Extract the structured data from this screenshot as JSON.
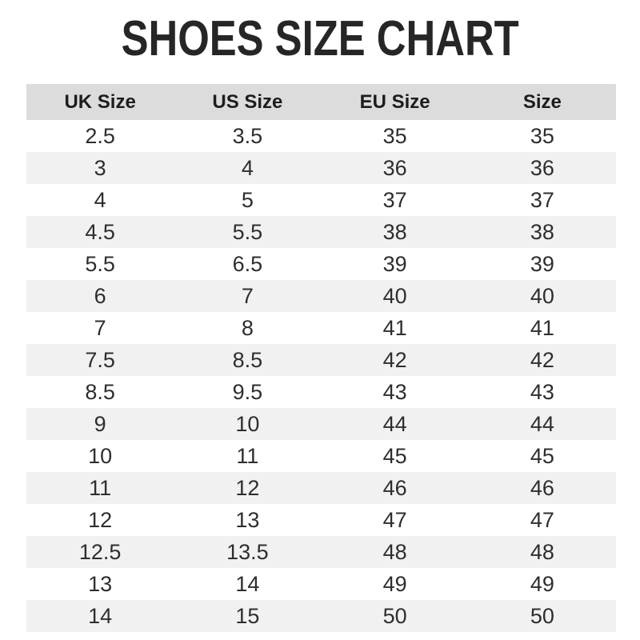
{
  "chart_data": {
    "type": "table",
    "title": "SHOES SIZE CHART",
    "columns": [
      "UK Size",
      "US Size",
      "EU Size",
      "Size"
    ],
    "rows": [
      [
        "2.5",
        "3.5",
        "35",
        "35"
      ],
      [
        "3",
        "4",
        "36",
        "36"
      ],
      [
        "4",
        "5",
        "37",
        "37"
      ],
      [
        "4.5",
        "5.5",
        "38",
        "38"
      ],
      [
        "5.5",
        "6.5",
        "39",
        "39"
      ],
      [
        "6",
        "7",
        "40",
        "40"
      ],
      [
        "7",
        "8",
        "41",
        "41"
      ],
      [
        "7.5",
        "8.5",
        "42",
        "42"
      ],
      [
        "8.5",
        "9.5",
        "43",
        "43"
      ],
      [
        "9",
        "10",
        "44",
        "44"
      ],
      [
        "10",
        "11",
        "45",
        "45"
      ],
      [
        "11",
        "12",
        "46",
        "46"
      ],
      [
        "12",
        "13",
        "47",
        "47"
      ],
      [
        "12.5",
        "13.5",
        "48",
        "48"
      ],
      [
        "13",
        "14",
        "49",
        "49"
      ],
      [
        "14",
        "15",
        "50",
        "50"
      ]
    ],
    "layout": {
      "header_row": true,
      "zebra_striping": true,
      "grid": "none"
    }
  },
  "colors": {
    "title_text": "#262626",
    "header_bg": "#dcdcdc",
    "header_text": "#1d1d1d",
    "row_alt_bg": "#f1f1f1",
    "row_bg": "#ffffff",
    "cell_text": "#2e2e2e"
  }
}
